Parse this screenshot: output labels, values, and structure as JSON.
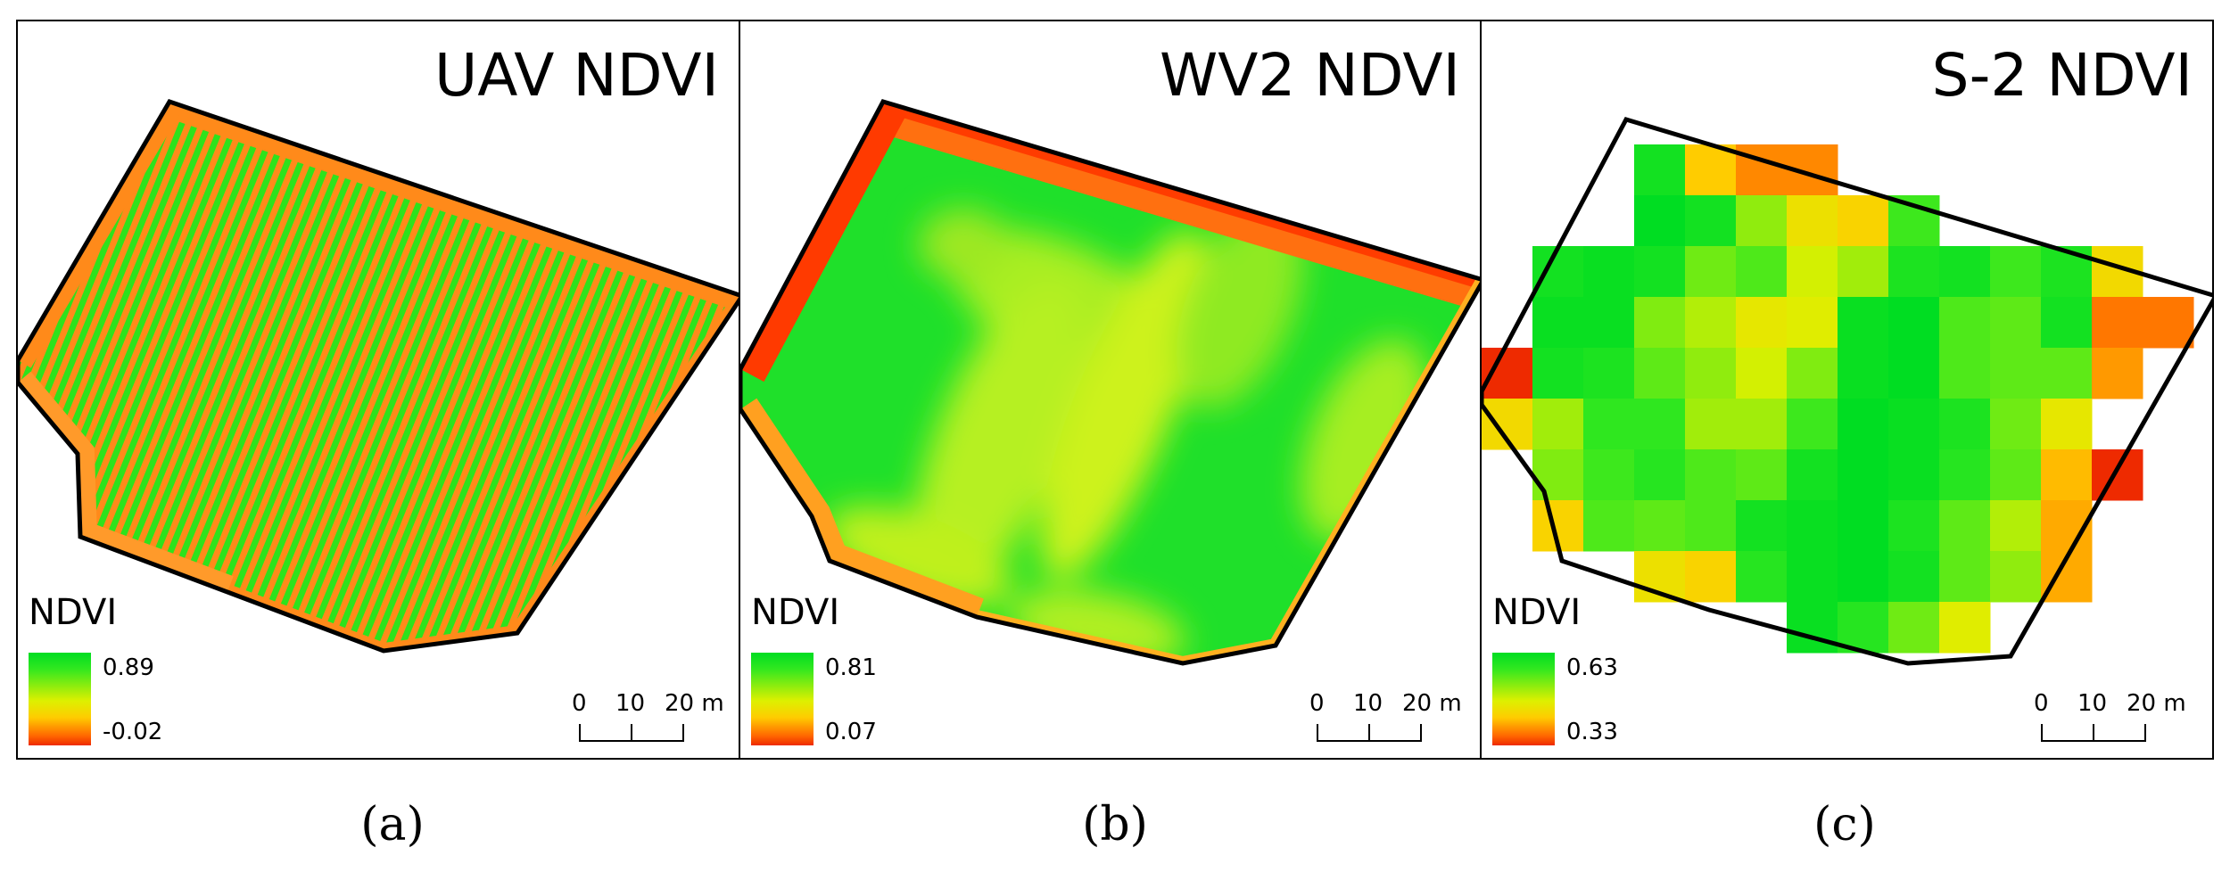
{
  "panels": [
    {
      "title": "UAV NDVI",
      "legend": {
        "label": "NDVI",
        "max": "0.89",
        "min": "-0.02"
      },
      "scale": {
        "t0": "0",
        "t1": "10",
        "t2": "20 m"
      },
      "caption": "(a)"
    },
    {
      "title": "WV2 NDVI",
      "legend": {
        "label": "NDVI",
        "max": "0.81",
        "min": "0.07"
      },
      "scale": {
        "t0": "0",
        "t1": "10",
        "t2": "20 m"
      },
      "caption": "(b)"
    },
    {
      "title": "S-2 NDVI",
      "legend": {
        "label": "NDVI",
        "max": "0.63",
        "min": "0.33"
      },
      "scale": {
        "t0": "0",
        "t1": "10",
        "t2": "20 m"
      },
      "caption": "(c)"
    }
  ],
  "colors": {
    "high": "#00dd22",
    "mid_high": "#66ee11",
    "mid": "#ddf000",
    "low_mid": "#ffcc00",
    "low": "#ff8800",
    "lowest": "#ee2a00",
    "boundary": "#000000"
  },
  "s2_grid_ndvi": [
    [
      null,
      null,
      null,
      0.61,
      0.42,
      0.38,
      0.38,
      null,
      null,
      null,
      null,
      null,
      null,
      null
    ],
    [
      null,
      null,
      null,
      0.63,
      0.61,
      0.52,
      0.45,
      0.43,
      0.57,
      null,
      null,
      null,
      null,
      null
    ],
    [
      null,
      0.61,
      0.62,
      0.61,
      0.54,
      0.56,
      0.48,
      0.51,
      0.6,
      0.61,
      0.57,
      0.6,
      0.44,
      null
    ],
    [
      null,
      0.62,
      0.62,
      0.53,
      0.5,
      0.46,
      0.47,
      0.62,
      0.63,
      0.56,
      0.55,
      0.61,
      0.37,
      0.37
    ],
    [
      0.33,
      0.61,
      0.6,
      0.55,
      0.52,
      0.48,
      0.53,
      0.62,
      0.63,
      0.56,
      0.55,
      0.55,
      0.39,
      null
    ],
    [
      0.44,
      0.51,
      0.58,
      0.58,
      0.51,
      0.51,
      0.57,
      0.63,
      0.62,
      0.6,
      0.54,
      0.46,
      null,
      null
    ],
    [
      null,
      0.53,
      0.57,
      0.59,
      0.56,
      0.55,
      0.61,
      0.63,
      0.62,
      0.59,
      0.55,
      0.41,
      0.33,
      null
    ],
    [
      null,
      0.43,
      0.56,
      0.55,
      0.56,
      0.61,
      0.62,
      0.63,
      0.6,
      0.55,
      0.5,
      0.4,
      null,
      null
    ],
    [
      null,
      null,
      null,
      0.45,
      0.43,
      0.59,
      0.62,
      0.63,
      0.61,
      0.55,
      0.52,
      0.4,
      null,
      null
    ],
    [
      null,
      null,
      null,
      null,
      null,
      null,
      0.62,
      0.59,
      0.54,
      0.47,
      null,
      null,
      null,
      null
    ]
  ]
}
